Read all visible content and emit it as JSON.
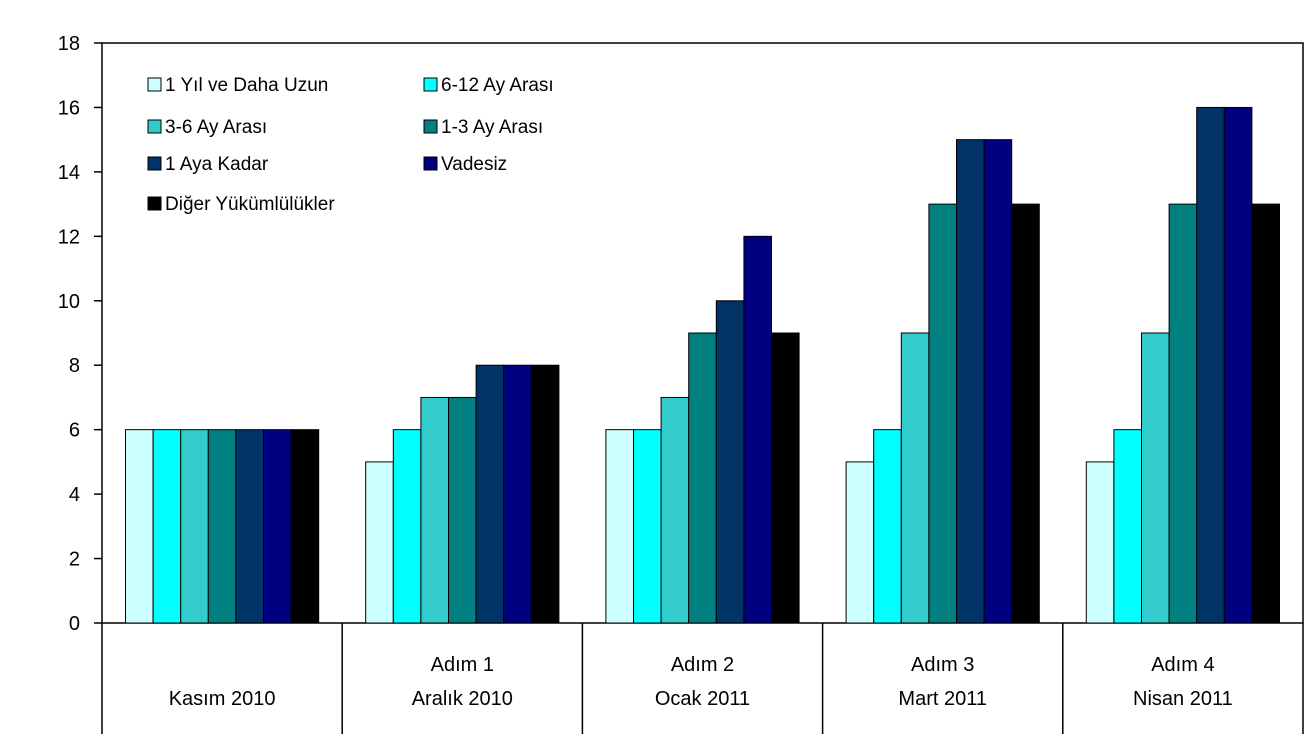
{
  "chart_data": {
    "type": "bar",
    "title": "",
    "xlabel": "",
    "ylabel": "",
    "ylim": [
      0,
      18
    ],
    "yticks": [
      0,
      2,
      4,
      6,
      8,
      10,
      12,
      14,
      16,
      18
    ],
    "grid": false,
    "legend_position": "top-left",
    "categories": [
      {
        "line1": "",
        "line2": "Kasım 2010"
      },
      {
        "line1": "Adım 1",
        "line2": "Aralık 2010"
      },
      {
        "line1": "Adım 2",
        "line2": "Ocak 2011"
      },
      {
        "line1": "Adım 3",
        "line2": "Mart 2011"
      },
      {
        "line1": "Adım 4",
        "line2": "Nisan 2011"
      }
    ],
    "series": [
      {
        "name": "1 Yıl ve Daha Uzun",
        "color": "#ccffff",
        "values": [
          6,
          5,
          6,
          5,
          5
        ]
      },
      {
        "name": "6-12 Ay Arası",
        "color": "#00ffff",
        "values": [
          6,
          6,
          6,
          6,
          6
        ]
      },
      {
        "name": "3-6 Ay Arası",
        "color": "#33cccc",
        "values": [
          6,
          7,
          7,
          9,
          9
        ]
      },
      {
        "name": "1-3 Ay Arası",
        "color": "#008080",
        "values": [
          6,
          7,
          9,
          13,
          13
        ]
      },
      {
        "name": "1 Aya Kadar",
        "color": "#003366",
        "values": [
          6,
          8,
          10,
          15,
          16
        ]
      },
      {
        "name": "Vadesiz",
        "color": "#000080",
        "values": [
          6,
          8,
          12,
          15,
          16
        ]
      },
      {
        "name": "Diğer Yükümlülükler",
        "color": "#000000",
        "values": [
          6,
          8,
          9,
          13,
          13
        ]
      }
    ]
  }
}
